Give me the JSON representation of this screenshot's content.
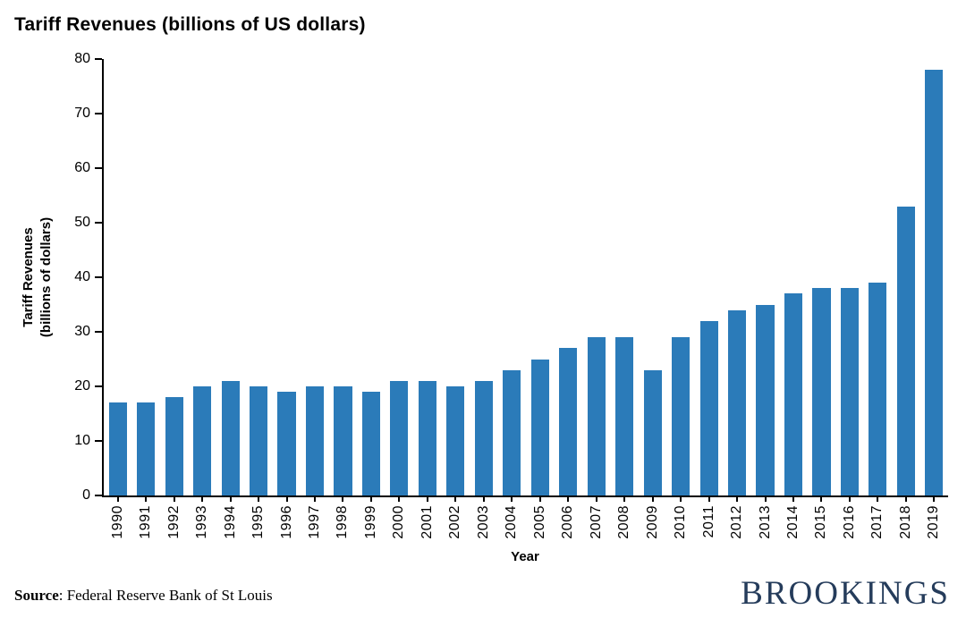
{
  "title": "Tariff Revenues (billions of US dollars)",
  "footer": {
    "source_label": "Source",
    "source_text": ": Federal Reserve Bank of St Louis",
    "brand": "BROOKINGS"
  },
  "colors": {
    "bar": "#2b7bb9",
    "brand": "#253c5b",
    "axis": "#000000"
  },
  "chart_data": {
    "type": "bar",
    "title": "Tariff Revenues (billions of US dollars)",
    "xlabel": "Year",
    "ylabel": "Tariff Revenues (billions of dollars)",
    "ylabel_lines": [
      "Tariff Revenues",
      "(billions of dollars)"
    ],
    "categories": [
      "1990",
      "1991",
      "1992",
      "1993",
      "1994",
      "1995",
      "1996",
      "1997",
      "1998",
      "1999",
      "2000",
      "2001",
      "2002",
      "2003",
      "2004",
      "2005",
      "2006",
      "2007",
      "2008",
      "2009",
      "2010",
      "2011",
      "2012",
      "2013",
      "2014",
      "2015",
      "2016",
      "2017",
      "2018",
      "2019"
    ],
    "values": [
      17,
      17,
      18,
      20,
      21,
      20,
      19,
      20,
      20,
      19,
      21,
      21,
      20,
      21,
      23,
      25,
      27,
      29,
      29,
      23,
      29,
      32,
      34,
      35,
      37,
      38,
      38,
      39,
      53,
      78
    ],
    "ylim": [
      0,
      80
    ],
    "yticks": [
      0,
      10,
      20,
      30,
      40,
      50,
      60,
      70,
      80
    ],
    "grid": false,
    "legend": false,
    "bar_color": "#2b7bb9"
  }
}
